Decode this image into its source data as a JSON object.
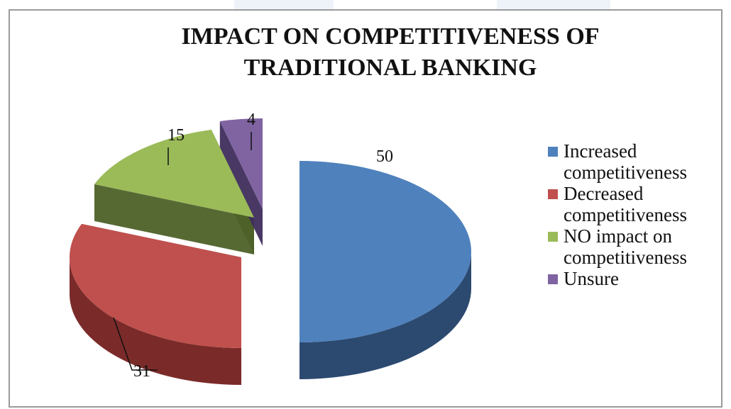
{
  "chart_data": {
    "type": "pie",
    "style": "3d-exploded",
    "title": [
      "IMPACT ON COMPETITIVENESS OF",
      "TRADITIONAL BANKING"
    ],
    "categories": [
      "Increased competitiveness",
      "Decreased competitiveness",
      "NO impact on competitiveness",
      "Unsure"
    ],
    "values": [
      50,
      31,
      15,
      4
    ],
    "legend": {
      "position": "right",
      "items": [
        {
          "label_lines": [
            "Increased",
            "competitiveness"
          ],
          "color": "#4F81BD"
        },
        {
          "label_lines": [
            "Decreased",
            "competitiveness"
          ],
          "color": "#C0504D"
        },
        {
          "label_lines": [
            "NO impact on",
            "competitiveness"
          ],
          "color": "#9BBB59"
        },
        {
          "label_lines": [
            "Unsure"
          ],
          "color": "#8064A2"
        }
      ]
    },
    "data_labels": [
      "50",
      "31",
      "15",
      "4"
    ]
  },
  "colors": {
    "top": [
      "#4F81BD",
      "#C0504D",
      "#9BBB59",
      "#8064A2"
    ],
    "side": [
      "#2C4A70",
      "#7A2B29",
      "#4E6128",
      "#3F2D5C"
    ]
  }
}
